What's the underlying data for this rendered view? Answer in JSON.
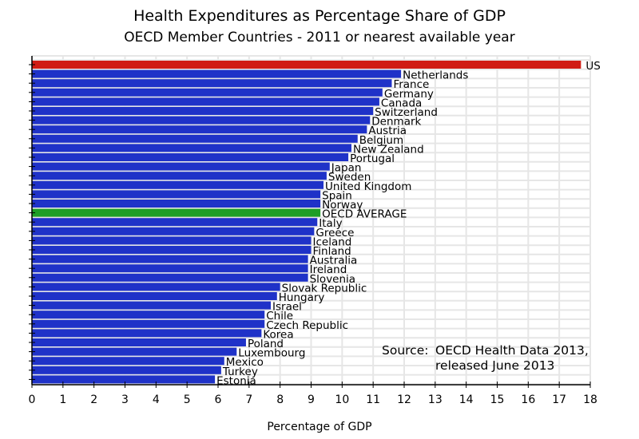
{
  "chart_data": {
    "type": "bar",
    "orientation": "horizontal",
    "title": "Health Expenditures as Percentage Share of GDP",
    "subtitle": "OECD Member Countries - 2011 or nearest available year",
    "xlabel": "Percentage of GDP",
    "ylabel": "",
    "xlim": [
      0,
      18
    ],
    "xticks": [
      0,
      1,
      2,
      3,
      4,
      5,
      6,
      7,
      8,
      9,
      10,
      11,
      12,
      13,
      14,
      15,
      16,
      17,
      18
    ],
    "grid": true,
    "annotation": {
      "label": "Source:",
      "line1": "OECD Health Data 2013,",
      "line2": "released June 2013",
      "position": "bottom-right"
    },
    "colors": {
      "default": "#1f32c8",
      "highlight_us": "#d01c14",
      "highlight_average": "#1e9e26",
      "grid": "#e6e6e6"
    },
    "categories": [
      "US",
      "Netherlands",
      "France",
      "Germany",
      "Canada",
      "Switzerland",
      "Denmark",
      "Austria",
      "Belgium",
      "New Zealand",
      "Portugal",
      "Japan",
      "Sweden",
      "United Kingdom",
      "Spain",
      "Norway",
      "OECD AVERAGE",
      "Italy",
      "Greece",
      "Iceland",
      "Finland",
      "Australia",
      "Ireland",
      "Slovenia",
      "Slovak Republic",
      "Hungary",
      "Israel",
      "Chile",
      "Czech Republic",
      "Korea",
      "Poland",
      "Luxembourg",
      "Mexico",
      "Turkey",
      "Estonia"
    ],
    "values": [
      17.7,
      11.9,
      11.6,
      11.3,
      11.2,
      11.0,
      10.9,
      10.8,
      10.5,
      10.3,
      10.2,
      9.6,
      9.5,
      9.4,
      9.3,
      9.3,
      9.3,
      9.2,
      9.1,
      9.0,
      9.0,
      8.9,
      8.9,
      8.9,
      8.0,
      7.9,
      7.7,
      7.5,
      7.5,
      7.4,
      6.9,
      6.6,
      6.2,
      6.1,
      5.9
    ],
    "bar_colors": [
      "highlight_us",
      "default",
      "default",
      "default",
      "default",
      "default",
      "default",
      "default",
      "default",
      "default",
      "default",
      "default",
      "default",
      "default",
      "default",
      "default",
      "highlight_average",
      "default",
      "default",
      "default",
      "default",
      "default",
      "default",
      "default",
      "default",
      "default",
      "default",
      "default",
      "default",
      "default",
      "default",
      "default",
      "default",
      "default",
      "default"
    ]
  }
}
